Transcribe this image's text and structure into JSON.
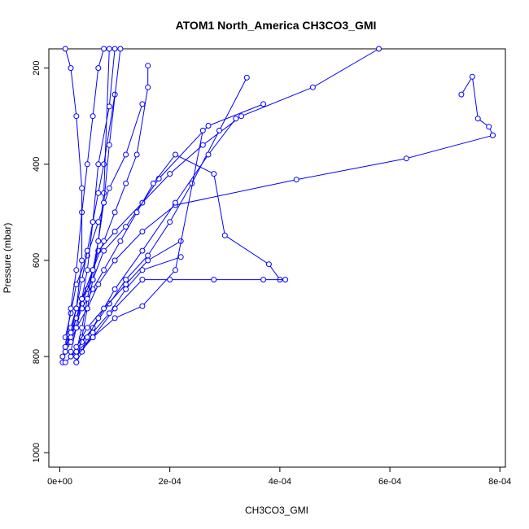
{
  "chart_data": {
    "type": "line",
    "title": "ATOM1 North_America CH3CO3_GMI",
    "xlabel": "CH3CO3_GMI",
    "ylabel": "Pressure (mbar)",
    "xlim": [
      -2e-05,
      0.00081
    ],
    "ylim": [
      1030,
      160
    ],
    "y_reversed": true,
    "x_ticks": [
      0,
      0.0002,
      0.0004,
      0.0006,
      0.0008
    ],
    "x_tick_labels": [
      "0e+00",
      "2e-04",
      "4e-04",
      "6e-04",
      "8e-04"
    ],
    "y_ticks": [
      200,
      400,
      600,
      800,
      1000
    ],
    "y_tick_labels": [
      "200",
      "400",
      "600",
      "800",
      "1000"
    ],
    "grid": false,
    "legend": "none",
    "series_color": "#0000ff",
    "marker": "open-circle",
    "series": [
      {
        "x": [
          5e-06,
          1e-05,
          1.5e-05,
          2e-05,
          3e-05,
          4e-05,
          5e-05,
          6e-05,
          7e-05,
          0.0001,
          0.00015,
          0.0002,
          0.00026,
          0.00033,
          0.00046,
          0.00058
        ],
        "y": [
          812,
          790,
          770,
          750,
          720,
          690,
          660,
          620,
          580,
          540,
          480,
          420,
          360,
          300,
          240,
          160
        ]
      },
      {
        "x": [
          5e-06,
          1e-05,
          2e-05,
          3e-05,
          4e-05,
          6e-05,
          8e-05,
          0.00012,
          0.00018,
          0.00027,
          0.00037
        ],
        "y": [
          800,
          780,
          750,
          720,
          680,
          640,
          580,
          530,
          430,
          320,
          275
        ]
      },
      {
        "x": [
          1e-05,
          2e-05,
          3e-05,
          5e-05,
          7e-05,
          0.0001,
          0.00015,
          0.00021,
          0.00043,
          0.00063,
          0.000787
        ],
        "y": [
          790,
          770,
          740,
          700,
          650,
          600,
          540,
          485,
          432,
          388,
          340
        ]
      },
      {
        "x": [
          1e-05,
          2e-05,
          3e-05,
          4e-05,
          6e-05,
          8e-05,
          0.00011,
          0.00014,
          0.00017,
          0.00021,
          0.00028,
          0.0003,
          0.00038,
          0.0004
        ],
        "y": [
          780,
          760,
          730,
          700,
          660,
          620,
          560,
          500,
          440,
          380,
          420,
          548,
          608,
          640
        ]
      },
      {
        "x": [
          1e-05,
          3e-05,
          6e-05,
          0.0001,
          0.00015,
          0.0002,
          0.00028,
          0.00037,
          0.00041
        ],
        "y": [
          812,
          790,
          760,
          700,
          640,
          640,
          640,
          640,
          640
        ]
      },
      {
        "x": [
          2e-05,
          4e-05,
          6e-05,
          9e-05,
          0.00012,
          0.00016,
          0.0002,
          0.00024,
          0.00029,
          0.00034
        ],
        "y": [
          800,
          770,
          740,
          690,
          640,
          590,
          520,
          440,
          330,
          220
        ]
      },
      {
        "x": [
          3e-05,
          4e-05,
          5e-05,
          7e-05,
          0.0001,
          0.00015,
          0.00021,
          0.00027,
          0.00032
        ],
        "y": [
          812,
          790,
          760,
          720,
          660,
          580,
          480,
          380,
          305
        ]
      },
      {
        "x": [
          2e-05,
          3e-05,
          4e-05,
          6e-05,
          8e-05,
          0.0001,
          0.00012,
          0.00014,
          0.00016,
          0.00016
        ],
        "y": [
          760,
          720,
          680,
          620,
          560,
          500,
          440,
          380,
          240,
          195
        ]
      },
      {
        "x": [
          1e-05,
          2e-05,
          3e-05,
          5e-05,
          7e-05,
          9e-05,
          0.00012,
          0.00015
        ],
        "y": [
          760,
          710,
          650,
          590,
          520,
          450,
          380,
          275
        ]
      },
      {
        "x": [
          2e-05,
          3e-05,
          4e-05,
          5e-05,
          6e-05,
          7e-05,
          8e-05,
          0.0001
        ],
        "y": [
          740,
          700,
          640,
          580,
          520,
          460,
          400,
          255
        ]
      },
      {
        "x": [
          3e-05,
          4e-05,
          5e-05,
          6e-05,
          7e-05,
          8e-05,
          9e-05
        ],
        "y": [
          812,
          760,
          700,
          640,
          560,
          460,
          160
        ]
      },
      {
        "x": [
          2e-05,
          3e-05,
          4e-05,
          5e-05,
          6e-05,
          7e-05,
          9e-05,
          0.0001
        ],
        "y": [
          790,
          740,
          680,
          620,
          520,
          400,
          280,
          160
        ]
      },
      {
        "x": [
          3e-05,
          4e-05,
          5e-05,
          6e-05,
          7e-05,
          8e-05,
          9e-05,
          0.00011
        ],
        "y": [
          790,
          740,
          680,
          620,
          560,
          480,
          360,
          160
        ]
      },
      {
        "x": [
          1e-05,
          2e-05,
          3e-05,
          4e-05,
          5e-05,
          6e-05,
          7e-05,
          8e-05
        ],
        "y": [
          780,
          700,
          620,
          500,
          400,
          300,
          200,
          160
        ]
      },
      {
        "x": [
          2e-05,
          3e-05,
          4e-05,
          4e-05,
          3e-05,
          2e-05,
          1e-05
        ],
        "y": [
          750,
          700,
          600,
          450,
          300,
          200,
          160
        ]
      },
      {
        "x": [
          0.000787,
          0.00078,
          0.00076,
          0.00075,
          0.00073
        ],
        "y": [
          340,
          322,
          305,
          218,
          255
        ]
      },
      {
        "x": [
          3e-05,
          5e-05,
          8e-05,
          0.00012,
          0.00016,
          0.00022
        ],
        "y": [
          780,
          740,
          700,
          650,
          600,
          560
        ]
      },
      {
        "x": [
          4e-05,
          6e-05,
          9e-05,
          0.00012,
          0.00015,
          0.00022
        ],
        "y": [
          790,
          750,
          710,
          660,
          620,
          593
        ]
      },
      {
        "x": [
          3e-05,
          6e-05,
          0.0001,
          0.00015,
          0.00021,
          0.00026
        ],
        "y": [
          800,
          760,
          720,
          695,
          620,
          330
        ]
      }
    ]
  }
}
